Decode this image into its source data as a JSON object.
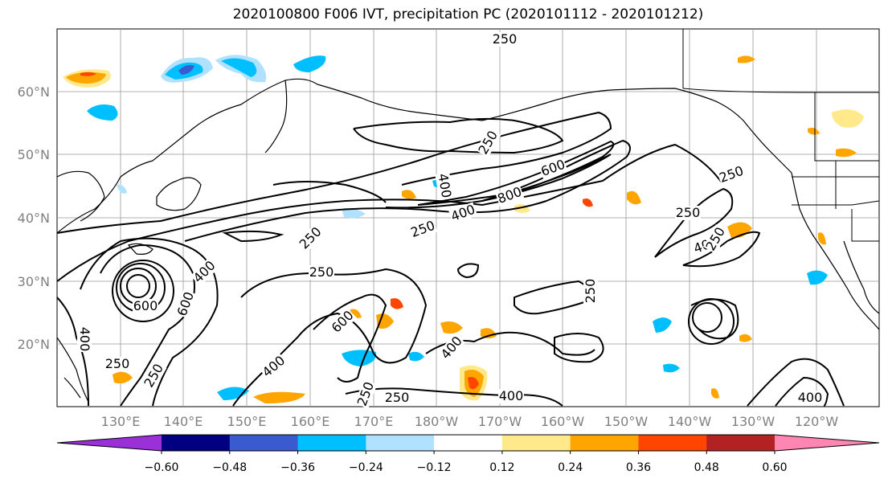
{
  "title": "2020100800 F006 IVT, precipitation PC (2020101112 - 2020101212)",
  "lat_labels": [
    "60°N",
    "50°N",
    "40°N",
    "30°N",
    "20°N"
  ],
  "lon_labels": [
    "130°E",
    "140°E",
    "150°E",
    "160°E",
    "170°E",
    "180°W",
    "170°W",
    "160°W",
    "150°W",
    "140°W",
    "130°W",
    "120°W"
  ],
  "contour_labels": [
    "250",
    "250",
    "250",
    "400",
    "600",
    "800",
    "400",
    "250",
    "250",
    "250",
    "400",
    "250",
    "250",
    "400",
    "600",
    "600",
    "250",
    "400",
    "600",
    "400",
    "250",
    "250",
    "400",
    "250",
    "400",
    "250",
    "400"
  ],
  "colorbar": {
    "ticks": [
      "−0.60",
      "−0.48",
      "−0.36",
      "−0.24",
      "−0.12",
      "0.12",
      "0.24",
      "0.36",
      "0.48",
      "0.60"
    ],
    "colors": [
      "#9b30d8",
      "#000080",
      "#3a5bcf",
      "#00bfff",
      "#b0e2ff",
      "#ffffff",
      "#ffe98a",
      "#ffa500",
      "#ff4500",
      "#b22222",
      "#ff85b3"
    ]
  },
  "colors": {
    "positive_mid": "#ffa500",
    "positive_strong": "#ff4500",
    "negative_mid": "#00bfff",
    "negative_light": "#b0e2ff",
    "negative_strong": "#3a5bcf"
  }
}
